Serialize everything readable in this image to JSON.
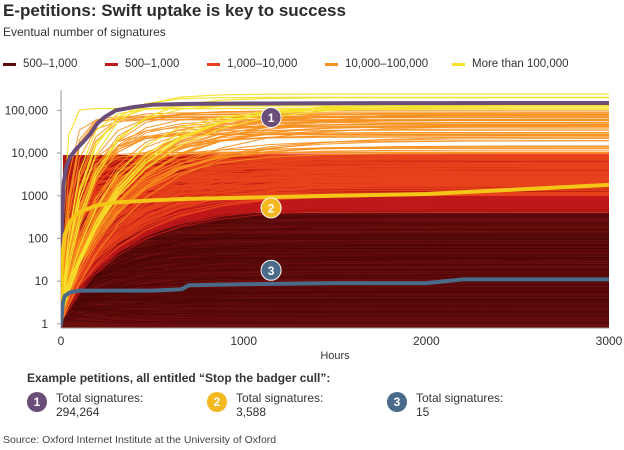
{
  "title": "E-petitions: Swift uptake is key to success",
  "subtitle": "Eventual number of signatures",
  "legend": [
    {
      "label": "500–1,000",
      "color": "#5a0a0a"
    },
    {
      "label": "500–1,000",
      "color": "#c0191b"
    },
    {
      "label": "1,000–10,000",
      "color": "#e8431c"
    },
    {
      "label": "10,000–100,000",
      "color": "#f7901e"
    },
    {
      "label": "More than 100,000",
      "color": "#f5e22b"
    }
  ],
  "chart_data": {
    "type": "line",
    "scale_y": "log",
    "xlabel": "Hours",
    "ylabel": "",
    "xlim": [
      0,
      3000
    ],
    "ylim": [
      0.8,
      300000
    ],
    "x_ticks": [
      0,
      1000,
      2000,
      3000
    ],
    "x_tick_labels": [
      "0",
      "1000",
      "2000",
      "3000"
    ],
    "y_ticks": [
      1,
      10,
      100,
      1000,
      10000,
      100000
    ],
    "y_tick_labels": [
      "1",
      "10",
      "100",
      "1000",
      "10,000",
      "100,000"
    ],
    "highlighted_series": [
      {
        "name": "1",
        "total": 294264,
        "color": "#6b4d7a",
        "x": [
          0,
          5,
          15,
          30,
          50,
          80,
          120,
          160,
          200,
          240,
          300,
          400,
          500,
          700,
          1000,
          1500,
          2000,
          3000
        ],
        "y": [
          1,
          200,
          2000,
          5000,
          8000,
          12000,
          18000,
          28000,
          50000,
          70000,
          100000,
          120000,
          135000,
          142000,
          145000,
          147000,
          148000,
          149000
        ]
      },
      {
        "name": "2",
        "total": 3588,
        "color": "#f5c518",
        "x": [
          0,
          5,
          20,
          50,
          80,
          120,
          200,
          300,
          500,
          700,
          1000,
          1500,
          2000,
          2500,
          3000
        ],
        "y": [
          1,
          30,
          120,
          250,
          350,
          450,
          600,
          700,
          780,
          850,
          900,
          1000,
          1100,
          1400,
          1800
        ]
      },
      {
        "name": "3",
        "total": 15,
        "color": "#4a6b8a",
        "x": [
          0,
          10,
          20,
          50,
          100,
          300,
          500,
          660,
          700,
          1000,
          1500,
          2000,
          2200,
          2500,
          3000
        ],
        "y": [
          1,
          3,
          4.5,
          5.5,
          6,
          6,
          6,
          6.5,
          8,
          8.5,
          9,
          9,
          11,
          11,
          11
        ]
      }
    ],
    "background_series_bands": [
      {
        "band": "500–1,000",
        "color": "#5a0a0a"
      },
      {
        "band": "500–1,000",
        "color": "#c0191b"
      },
      {
        "band": "1,000–10,000",
        "color": "#e8431c"
      },
      {
        "band": "10,000–100,000",
        "color": "#f7901e"
      },
      {
        "band": "More than 100,000",
        "color": "#f5e22b"
      }
    ],
    "annotations": [
      "1",
      "2",
      "3"
    ]
  },
  "examples": {
    "title": "Example petitions, all entitled “Stop the badger cull”:",
    "items": [
      {
        "num": "1",
        "label": "Total signatures:",
        "value": "294,264",
        "color": "#6b4d7a"
      },
      {
        "num": "2",
        "label": "Total signatures:",
        "value": "3,588",
        "color": "#f5b820"
      },
      {
        "num": "3",
        "label": "Total signatures:",
        "value": "15",
        "color": "#4a6b8a"
      }
    ]
  },
  "source": "Source: Oxford Internet Institute at the University of Oxford"
}
